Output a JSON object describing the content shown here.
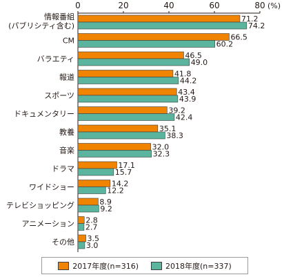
{
  "chart_data": {
    "type": "bar",
    "orientation": "horizontal",
    "unit": "(%)",
    "xlim": [
      0,
      80
    ],
    "xticks": [
      0,
      20,
      40,
      60,
      80
    ],
    "grid": false,
    "legend_position": "bottom",
    "categories": [
      [
        "情報番組",
        "(パブリシティ含む)"
      ],
      [
        "CM"
      ],
      [
        "バラエティ"
      ],
      [
        "報道"
      ],
      [
        "スポーツ"
      ],
      [
        "ドキュメンタリー"
      ],
      [
        "教養"
      ],
      [
        "音楽"
      ],
      [
        "ドラマ"
      ],
      [
        "ワイドショー"
      ],
      [
        "テレビショッピング"
      ],
      [
        "アニメーション"
      ],
      [
        "その他"
      ]
    ],
    "series": [
      {
        "name": "2017年度(n=316)",
        "color": "#f08300",
        "values": [
          71.2,
          66.5,
          46.5,
          41.8,
          43.4,
          39.2,
          35.1,
          32.0,
          17.1,
          14.2,
          8.9,
          2.8,
          3.5
        ]
      },
      {
        "name": "2018年度(n=337)",
        "color": "#5bb59e",
        "values": [
          74.2,
          60.2,
          49.0,
          44.2,
          43.9,
          42.4,
          38.3,
          32.3,
          15.7,
          12.2,
          9.2,
          2.7,
          3.0
        ]
      }
    ]
  }
}
